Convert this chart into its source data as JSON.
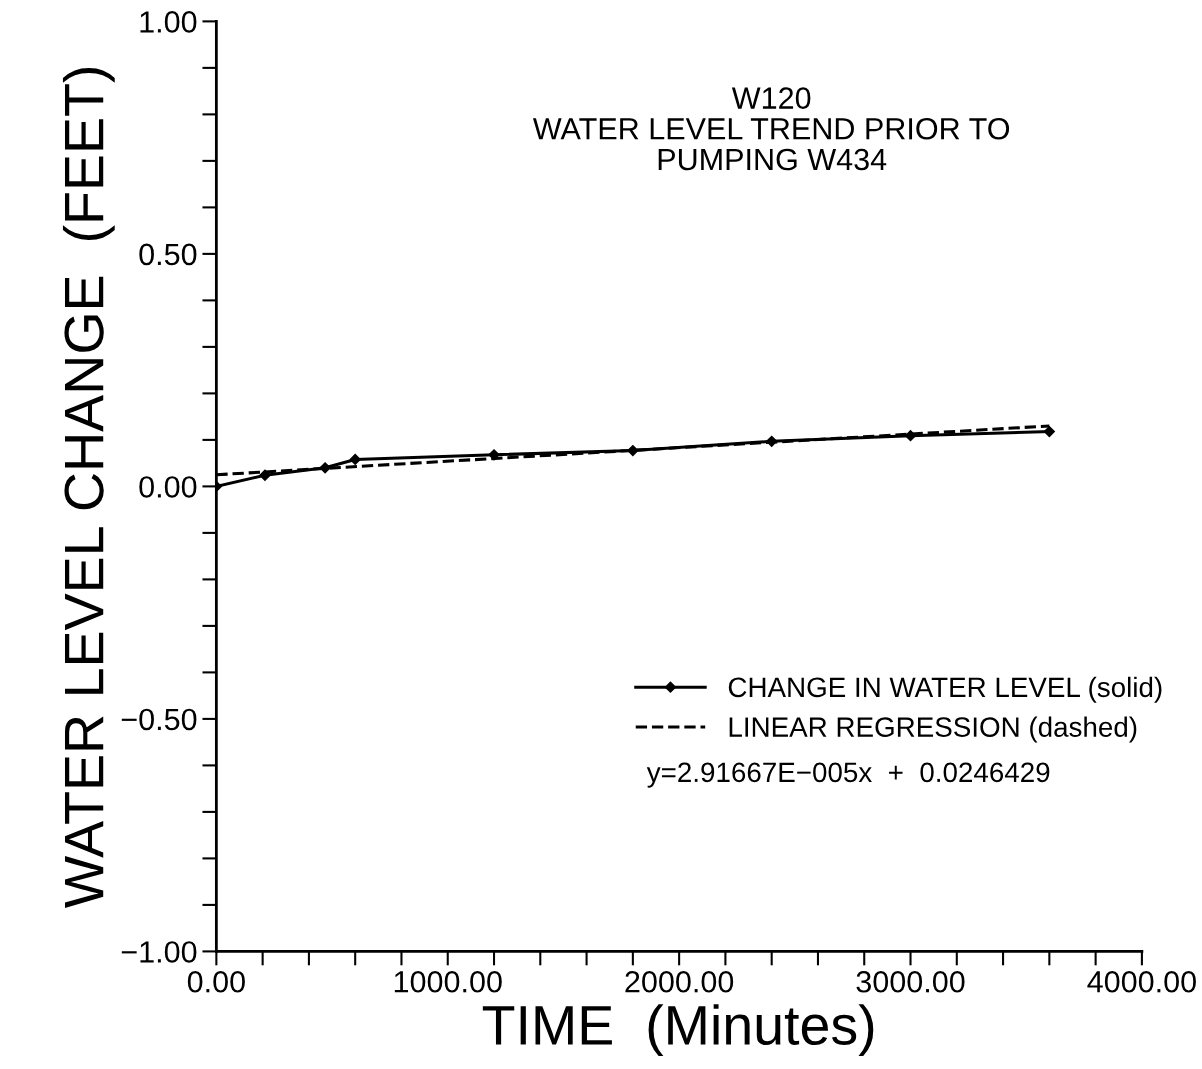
{
  "chart_data": {
    "type": "line",
    "title": "W120\nWATER LEVEL TREND PRIOR TO\nPUMPING W434",
    "xlabel": "TIME  (Minutes)",
    "ylabel": "WATER LEVEL CHANGE  (FEET)",
    "series": [
      {
        "name": "CHANGE IN WATER LEVEL (solid)",
        "color": "#000000",
        "marker": "diamond",
        "line_style": "solid",
        "x": [
          0,
          210,
          470,
          600,
          1200,
          1800,
          2400,
          3000,
          3600
        ],
        "values": [
          0.0,
          0.024,
          0.04,
          0.058,
          0.068,
          0.077,
          0.097,
          0.109,
          0.118
        ]
      },
      {
        "name": "LINEAR REGRESSION (dashed)",
        "color": "#000000",
        "marker": "none",
        "line_style": "dashed",
        "x": [
          0,
          3600
        ],
        "values": [
          0.025,
          0.13
        ]
      }
    ],
    "annotations": [
      "y=2.91667E−005x  +  0.0246429"
    ],
    "xlim": [
      0,
      4000
    ],
    "ylim": [
      -1,
      1
    ],
    "xticks": [
      {
        "value": 0,
        "label": "0.00"
      },
      {
        "value": 200,
        "label": null
      },
      {
        "value": 400,
        "label": null
      },
      {
        "value": 600,
        "label": null
      },
      {
        "value": 800,
        "label": null
      },
      {
        "value": 1000,
        "label": "1000.00"
      },
      {
        "value": 1200,
        "label": null
      },
      {
        "value": 1400,
        "label": null
      },
      {
        "value": 1600,
        "label": null
      },
      {
        "value": 1800,
        "label": null
      },
      {
        "value": 2000,
        "label": "2000.00"
      },
      {
        "value": 2200,
        "label": null
      },
      {
        "value": 2400,
        "label": null
      },
      {
        "value": 2600,
        "label": null
      },
      {
        "value": 2800,
        "label": null
      },
      {
        "value": 3000,
        "label": "3000.00"
      },
      {
        "value": 3200,
        "label": null
      },
      {
        "value": 3400,
        "label": null
      },
      {
        "value": 3600,
        "label": null
      },
      {
        "value": 3800,
        "label": null
      },
      {
        "value": 4000,
        "label": "4000.00"
      }
    ],
    "yticks": [
      {
        "value": -1,
        "label": "−1.00"
      },
      {
        "value": -0.9,
        "label": null
      },
      {
        "value": -0.8,
        "label": null
      },
      {
        "value": -0.7,
        "label": null
      },
      {
        "value": -0.6,
        "label": null
      },
      {
        "value": -0.5,
        "label": "−0.50"
      },
      {
        "value": -0.4,
        "label": null
      },
      {
        "value": -0.3,
        "label": null
      },
      {
        "value": -0.2,
        "label": null
      },
      {
        "value": -0.1,
        "label": null
      },
      {
        "value": 0,
        "label": "0.00"
      },
      {
        "value": 0.1,
        "label": null
      },
      {
        "value": 0.2,
        "label": null
      },
      {
        "value": 0.3,
        "label": null
      },
      {
        "value": 0.4,
        "label": null
      },
      {
        "value": 0.5,
        "label": "0.50"
      },
      {
        "value": 0.6,
        "label": null
      },
      {
        "value": 0.7,
        "label": null
      },
      {
        "value": 0.8,
        "label": null
      },
      {
        "value": 0.9,
        "label": null
      },
      {
        "value": 1,
        "label": "1.00"
      }
    ],
    "grid": false,
    "legend": "right"
  }
}
